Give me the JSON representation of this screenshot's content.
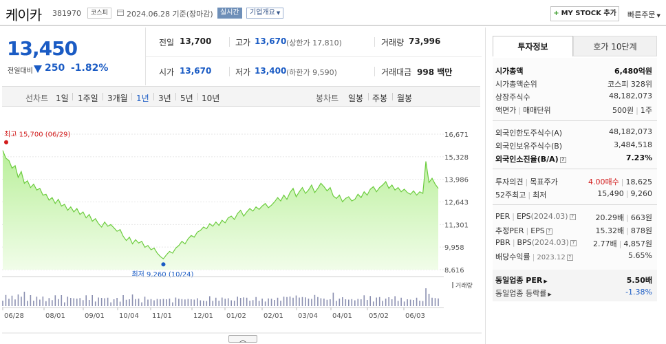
{
  "header": {
    "company_name": "케이카",
    "code": "381970",
    "market": "코스피",
    "date_text": "2024.06.28 기준(장마감)",
    "live_label": "실시간",
    "company_info_label": "기업개요",
    "mystock_label": "MY STOCK 추가",
    "quick_order_label": "빠른주문"
  },
  "price": {
    "current": "13,450",
    "change_label": "전일대비",
    "change": "250",
    "change_pct": "-1.82%",
    "direction": "down"
  },
  "quote": {
    "prev_close_label": "전일",
    "prev_close": "13,700",
    "high_label": "고가",
    "high": "13,670",
    "upper_limit": "(상한가 17,810)",
    "volume_label": "거래량",
    "volume": "73,996",
    "open_label": "시가",
    "open": "13,670",
    "low_label": "저가",
    "low": "13,400",
    "lower_limit": "(하한가 9,590)",
    "amount_label": "거래대금",
    "amount": "998 백만"
  },
  "chart_tabs": {
    "line_label": "선차트",
    "line_periods": [
      "1일",
      "1주일",
      "3개월",
      "1년",
      "3년",
      "5년",
      "10년"
    ],
    "active_period": "1년",
    "candle_label": "봉차트",
    "candle_periods": [
      "일봉",
      "주봉",
      "월봉"
    ]
  },
  "chart_data": {
    "type": "area",
    "y_ticks": [
      "16,671",
      "15,328",
      "13,986",
      "12,643",
      "11,301",
      "9,958",
      "8,616"
    ],
    "ylim": [
      8616,
      16671
    ],
    "x_ticks": [
      "06/28",
      "08/01",
      "09/01",
      "10/04",
      "11/01",
      "12/01",
      "01/02",
      "02/01",
      "03/04",
      "04/01",
      "05/02",
      "06/03"
    ],
    "high_annotation": "최고 15,700 (06/29)",
    "low_annotation": "최저 9,260 (10/24)",
    "volume_label": "거래량",
    "series": [
      {
        "values": [
          15700,
          15250,
          15100,
          14650,
          14800,
          14100,
          14450,
          13750,
          13900,
          13500,
          13700,
          13350,
          13450,
          13050,
          13100,
          12750,
          12900,
          12550,
          12800,
          12400,
          12500,
          12150,
          12350,
          12050,
          12250,
          11900,
          12050,
          11700,
          11900,
          11500,
          11650,
          11350,
          11150,
          11450,
          11200,
          11300,
          11100,
          10900,
          11000,
          10600,
          10350,
          10550,
          10150,
          10400,
          10200,
          10300,
          9950,
          10050,
          9800,
          9900,
          9600,
          9400,
          9260,
          9500,
          9700,
          9600,
          9900,
          10050,
          10300,
          10150,
          10450,
          10650,
          10550,
          10850,
          10950,
          11150,
          11050,
          11350,
          11200,
          11450,
          11250,
          11550,
          11400,
          11700,
          11800,
          11600,
          11950,
          12150,
          11800,
          12050,
          12250,
          12100,
          12350,
          12200,
          12400,
          12550,
          12300,
          12450,
          12650,
          12900,
          12700,
          13050,
          12800,
          13200,
          13450,
          12950,
          13250,
          13500,
          13150,
          13350,
          13650,
          13200,
          13450,
          13750,
          13550,
          13300,
          13500,
          13000,
          12850,
          13050,
          12650,
          12850,
          12950,
          12700,
          12800,
          13100,
          12900,
          13250,
          13050,
          13400,
          13550,
          13250,
          13500,
          13650,
          13850,
          13450,
          13650,
          13350,
          13500,
          13250,
          13400,
          13200,
          13100,
          13300,
          13050,
          13250,
          13150,
          15050,
          13800,
          14050,
          13700,
          13450
        ]
      }
    ]
  },
  "invest": {
    "tab_active": "투자정보",
    "tab_other": "호가 10단계",
    "market_cap_label": "시가총액",
    "market_cap": "6,480억원",
    "rank_label": "시가총액순위",
    "rank": "코스피 328위",
    "shares_label": "상장주식수",
    "shares": "48,182,073",
    "face_label": "액면가",
    "unit_label": "매매단위",
    "face": "500원",
    "unit": "1주",
    "foreign_limit_label": "외국인한도주식수(A)",
    "foreign_limit": "48,182,073",
    "foreign_hold_label": "외국인보유주식수(B)",
    "foreign_hold": "3,484,518",
    "foreign_ratio_label": "외국인소진율(B/A)",
    "foreign_ratio": "7.23%",
    "opinion_label": "투자의견",
    "target_label": "목표주가",
    "opinion": "4.00매수",
    "target": "18,625",
    "w52_label": "52주최고",
    "w52_low_label": "최저",
    "w52_high": "15,490",
    "w52_low": "9,260",
    "per_label": "PER",
    "eps_label": "EPS",
    "per_date": "(2024.03)",
    "per": "20.29배",
    "eps": "663원",
    "eper_label": "추정PER",
    "eeps_label": "EPS",
    "eper": "15.32배",
    "eeps": "878원",
    "pbr_label": "PBR",
    "bps_label": "BPS",
    "pbr_date": "(2024.03)",
    "pbr": "2.77배",
    "bps": "4,857원",
    "div_label": "배당수익률",
    "div_date": "2023.12",
    "div": "5.65%",
    "peer_per_label": "동일업종 PER",
    "peer_per": "5.50배",
    "peer_rate_label": "동일업종 등락률",
    "peer_rate": "-1.38%"
  }
}
